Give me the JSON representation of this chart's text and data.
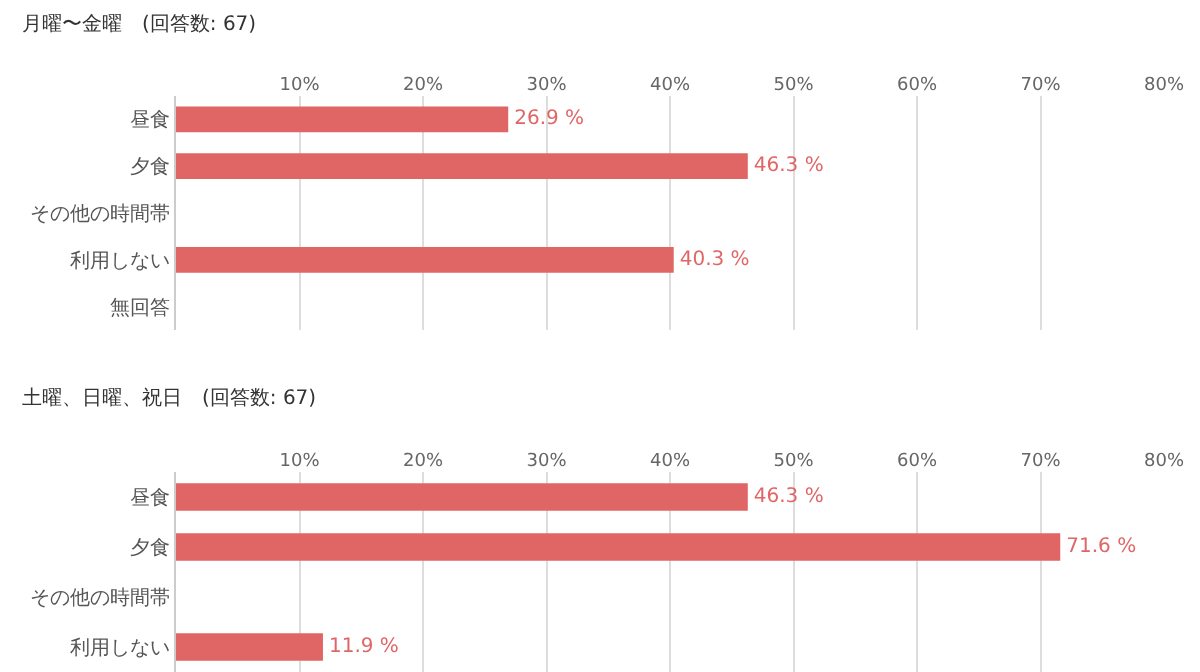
{
  "chart_data": [
    {
      "type": "bar",
      "orientation": "horizontal",
      "title": "月曜〜金曜　(回答数: 67)",
      "categories": [
        "昼食",
        "夕食",
        "その他の時間帯",
        "利用しない",
        "無回答"
      ],
      "values": [
        26.9,
        46.3,
        null,
        40.3,
        null
      ],
      "value_labels": [
        "26.9 %",
        "46.3 %",
        null,
        "40.3 %",
        null
      ],
      "color": "#e06666",
      "xlim": [
        0,
        80
      ],
      "xticks": [
        {
          "value": 10,
          "label": "10%"
        },
        {
          "value": 20,
          "label": "20%"
        },
        {
          "value": 30,
          "label": "30%"
        },
        {
          "value": 40,
          "label": "40%"
        },
        {
          "value": 50,
          "label": "50%"
        },
        {
          "value": 60,
          "label": "60%"
        },
        {
          "value": 70,
          "label": "70%"
        },
        {
          "value": 80,
          "label": "80%"
        }
      ],
      "grid": "x"
    },
    {
      "type": "bar",
      "orientation": "horizontal",
      "title": "土曜、日曜、祝日　(回答数: 67)",
      "categories": [
        "昼食",
        "夕食",
        "その他の時間帯",
        "利用しない"
      ],
      "values": [
        46.3,
        71.6,
        null,
        11.9
      ],
      "value_labels": [
        "46.3 %",
        "71.6 %",
        null,
        "11.9 %"
      ],
      "color": "#e06666",
      "xlim": [
        0,
        80
      ],
      "xticks": [
        {
          "value": 10,
          "label": "10%"
        },
        {
          "value": 20,
          "label": "20%"
        },
        {
          "value": 30,
          "label": "30%"
        },
        {
          "value": 40,
          "label": "40%"
        },
        {
          "value": 50,
          "label": "50%"
        },
        {
          "value": 60,
          "label": "60%"
        },
        {
          "value": 70,
          "label": "70%"
        },
        {
          "value": 80,
          "label": "80%"
        }
      ],
      "grid": "x"
    }
  ]
}
